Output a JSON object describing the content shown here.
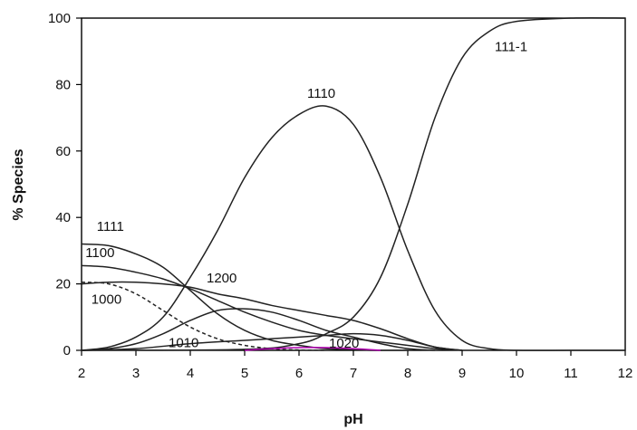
{
  "chart_data": {
    "type": "line",
    "xlabel": "pH",
    "ylabel": "% Species",
    "xlim": [
      2,
      12
    ],
    "ylim": [
      0,
      100
    ],
    "xticks": [
      "2",
      "3",
      "4",
      "5",
      "6",
      "7",
      "8",
      "9",
      "10",
      "11",
      "12"
    ],
    "yticks": [
      "0",
      "20",
      "40",
      "60",
      "80",
      "100"
    ],
    "grid": false,
    "legend": "none",
    "series": [
      {
        "name": "111-1",
        "color": "#222222",
        "dash": "solid",
        "x": [
          2,
          5,
          6,
          6.5,
          7,
          7.5,
          8,
          8.5,
          9,
          9.5,
          10,
          11,
          12
        ],
        "y": [
          0,
          0.3,
          2,
          5,
          10,
          22,
          44,
          70,
          88,
          96,
          99,
          100,
          100
        ]
      },
      {
        "name": "1110",
        "color": "#222222",
        "dash": "solid",
        "x": [
          2,
          2.5,
          3,
          3.5,
          4,
          4.5,
          5,
          5.5,
          6,
          6.5,
          7,
          7.5,
          8,
          8.5,
          9,
          9.5,
          10,
          11,
          12
        ],
        "y": [
          0,
          1,
          4,
          10,
          22,
          36,
          52,
          64,
          71,
          73.5,
          68,
          52,
          30,
          12,
          3,
          0.5,
          0,
          0,
          0
        ]
      },
      {
        "name": "1111",
        "color": "#222222",
        "dash": "solid",
        "x": [
          2,
          2.5,
          3,
          3.5,
          4,
          4.5,
          5,
          5.5,
          6,
          6.5,
          7,
          7.5,
          8
        ],
        "y": [
          32,
          31.5,
          29,
          25,
          18,
          11,
          6,
          3,
          1.5,
          0.5,
          0.2,
          0,
          0
        ]
      },
      {
        "name": "1100",
        "color": "#222222",
        "dash": "solid",
        "x": [
          2,
          2.5,
          3,
          3.5,
          4,
          4.5,
          5,
          5.5,
          6,
          6.5,
          7,
          7.5,
          8,
          8.5,
          9
        ],
        "y": [
          25.5,
          25,
          23.5,
          21.5,
          18.5,
          15,
          11.5,
          8.5,
          6,
          4.5,
          3.5,
          2.5,
          1.5,
          0.5,
          0
        ]
      },
      {
        "name": "1000",
        "color": "#222222",
        "dash": "dashed",
        "x": [
          2,
          2.5,
          3,
          3.5,
          4,
          4.5,
          5,
          5.5,
          6,
          6.5
        ],
        "y": [
          20.5,
          20,
          17,
          12,
          7,
          3.5,
          1.5,
          0.5,
          0.1,
          0
        ]
      },
      {
        "name": "1200",
        "color": "#222222",
        "dash": "solid",
        "x": [
          2,
          2.5,
          3,
          3.5,
          4,
          4.5,
          5,
          5.5,
          6,
          6.5,
          7,
          7.5,
          8,
          8.5,
          9
        ],
        "y": [
          20,
          20.5,
          20.5,
          20,
          19,
          17,
          15.5,
          13.5,
          12,
          10.5,
          9,
          6.5,
          3.5,
          1,
          0
        ]
      },
      {
        "name": "1010",
        "color": "#222222",
        "dash": "solid",
        "x": [
          2,
          2.5,
          3,
          3.5,
          4,
          4.5,
          5,
          5.5,
          6,
          6.5,
          7,
          7.5,
          8,
          8.5
        ],
        "y": [
          0,
          0.5,
          2,
          5,
          9,
          12,
          12.5,
          11.5,
          9,
          6,
          4,
          2,
          0.5,
          0
        ]
      },
      {
        "name": "1020",
        "color": "#222222",
        "dash": "solid",
        "x": [
          2,
          3,
          4,
          5,
          5.5,
          6,
          6.5,
          7,
          7.5,
          8,
          8.5,
          9
        ],
        "y": [
          0,
          0.5,
          2,
          3,
          3.5,
          4,
          4.5,
          5,
          4.5,
          3,
          1,
          0
        ]
      },
      {
        "name": "",
        "color": "#b000b0",
        "dash": "solid",
        "x": [
          5,
          5.5,
          6,
          6.5,
          7,
          7.5
        ],
        "y": [
          0,
          0.5,
          0.8,
          0.8,
          0.5,
          0
        ]
      }
    ],
    "annotations": [
      {
        "text": "111-1",
        "x": 9.6,
        "y": 90
      },
      {
        "text": "1110",
        "x": 6.15,
        "y": 76
      },
      {
        "text": "1111",
        "x": 2.28,
        "y": 36
      },
      {
        "text": "1100",
        "x": 2.07,
        "y": 28
      },
      {
        "text": "1000",
        "x": 2.18,
        "y": 14
      },
      {
        "text": "1200",
        "x": 4.3,
        "y": 20.5
      },
      {
        "text": "1010",
        "x": 3.6,
        "y": 1
      },
      {
        "text": "1020",
        "x": 6.55,
        "y": 0.8
      }
    ]
  }
}
